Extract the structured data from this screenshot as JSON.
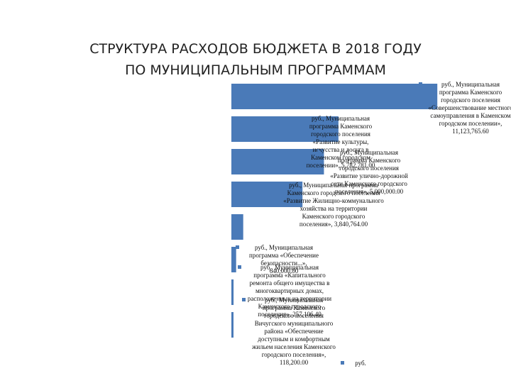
{
  "title": {
    "line1": "СТРУКТУРА РАСХОДОВ БЮДЖЕТА В 2018 ГОДУ",
    "line2": "ПО МУНИЦИПАЛЬНЫМ ПРОГРАММАМ"
  },
  "chart_data": {
    "type": "bar",
    "orientation": "horizontal",
    "unit": "руб.",
    "accent_color": "#4a7ab8",
    "categories": [
      "Муниципальная программа Каменского городского поселения «Совершенствование местного самоуправления в Каменском городском поселении»",
      "Муниципальная программа Каменского городского поселения «Развитие культуры, искусства и досуга в Каменском городском поселении»",
      "Муниципальная программа Каменского городского поселения «Развитие улично-дорожной сети Каменского городского поселения»",
      "Муниципальная программа Каменского городского поселения «Развитие Жилищно-коммунального хозяйства на территории Каменского городского поселения»",
      "Муниципальная программа «Обеспечение безопасности...»",
      "Муниципальная программа «Капитального ремонта общего имущества в многоквартирных домах, расположенных на территории Каменского городского поселения»",
      "Муниципальная программа Каменского городского поселения Вичугского муниципального района «Обеспечение доступным и комфортным жильем населения Каменского городского поселения»",
      ""
    ],
    "labels": [
      "руб., Муниципальная программа Каменского городского поселения «Совершенствование местного самоуправления в Каменском городском поселении», 11,123,765.60",
      "руб., Муниципальная программа Каменского городского поселения «Развитие культуры, искусства и досуга в Каменском городском поселении», 5,782,781.00",
      "руб., Муниципальная программа Каменского городского поселения «Развитие улично-дорожной сети Каменского городского поселения», 5,000,000.00",
      "руб., Муниципальная программа Каменского городского поселения «Развитие Жилищно-коммунального хозяйства на территории Каменского городского поселения», 3,840,764.00",
      "руб., Муниципальная программа «Обеспечение безопасности...», 640,000.00",
      "руб., Муниципальная программа «Капитального ремонта общего имущества в многоквартирных домах, расположенных на территории Каменского городского поселения», 257,106.40",
      "руб., Муниципальная программа Каменского городского поселения Вичугского муниципального района «Обеспечение доступным и комфортным жильем населения Каменского городского поселения», 118,200.00",
      "руб."
    ],
    "values": [
      11123765.6,
      5782781.0,
      5000000.0,
      3840764.0,
      640000.0,
      257106.4,
      118200.0,
      0
    ],
    "xlim": [
      0,
      11500000
    ]
  }
}
